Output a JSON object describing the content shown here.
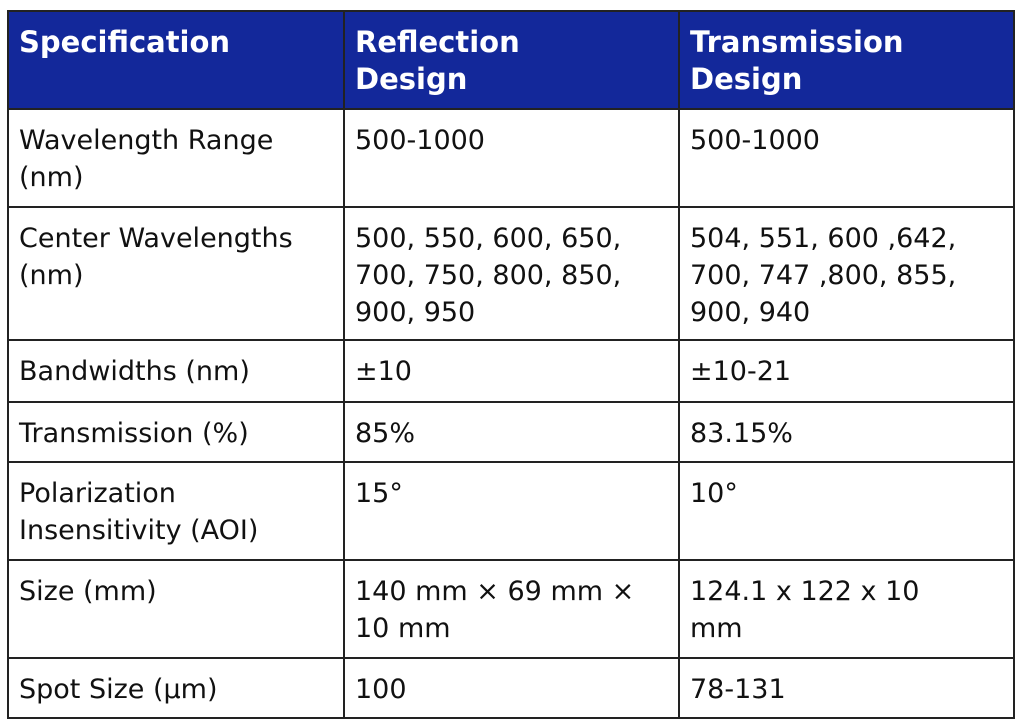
{
  "table": {
    "headers": [
      "Specification",
      "Reflection\nDesign",
      "Transmission\nDesign"
    ],
    "rows": [
      {
        "spec": "Wavelength Range\n(nm)",
        "reflection": "500-1000",
        "transmission": "500-1000"
      },
      {
        "spec": "Center Wavelengths\n(nm)",
        "reflection": "500, 550, 600, 650,\n700, 750, 800, 850,\n900, 950",
        "transmission": "504, 551, 600 ,642,\n700, 747 ,800, 855,\n900, 940"
      },
      {
        "spec": "Bandwidths (nm)",
        "reflection": "±10",
        "transmission": "±10-21"
      },
      {
        "spec": "Transmission (%)",
        "reflection": "85%",
        "transmission": "83.15%"
      },
      {
        "spec": "Polarization\nInsensitivity (AOI)",
        "reflection": "15°",
        "transmission": "10°"
      },
      {
        "spec": "Size (mm)",
        "reflection": "140 mm × 69 mm ×\n10 mm",
        "transmission": "124.1 x 122 x 10\nmm"
      },
      {
        "spec": "Spot Size (μm)",
        "reflection": "100",
        "transmission": "78-131"
      }
    ]
  },
  "colors": {
    "header_background": "#13289a",
    "header_text": "#ffffff",
    "body_text": "#111111",
    "border": "#222222"
  }
}
